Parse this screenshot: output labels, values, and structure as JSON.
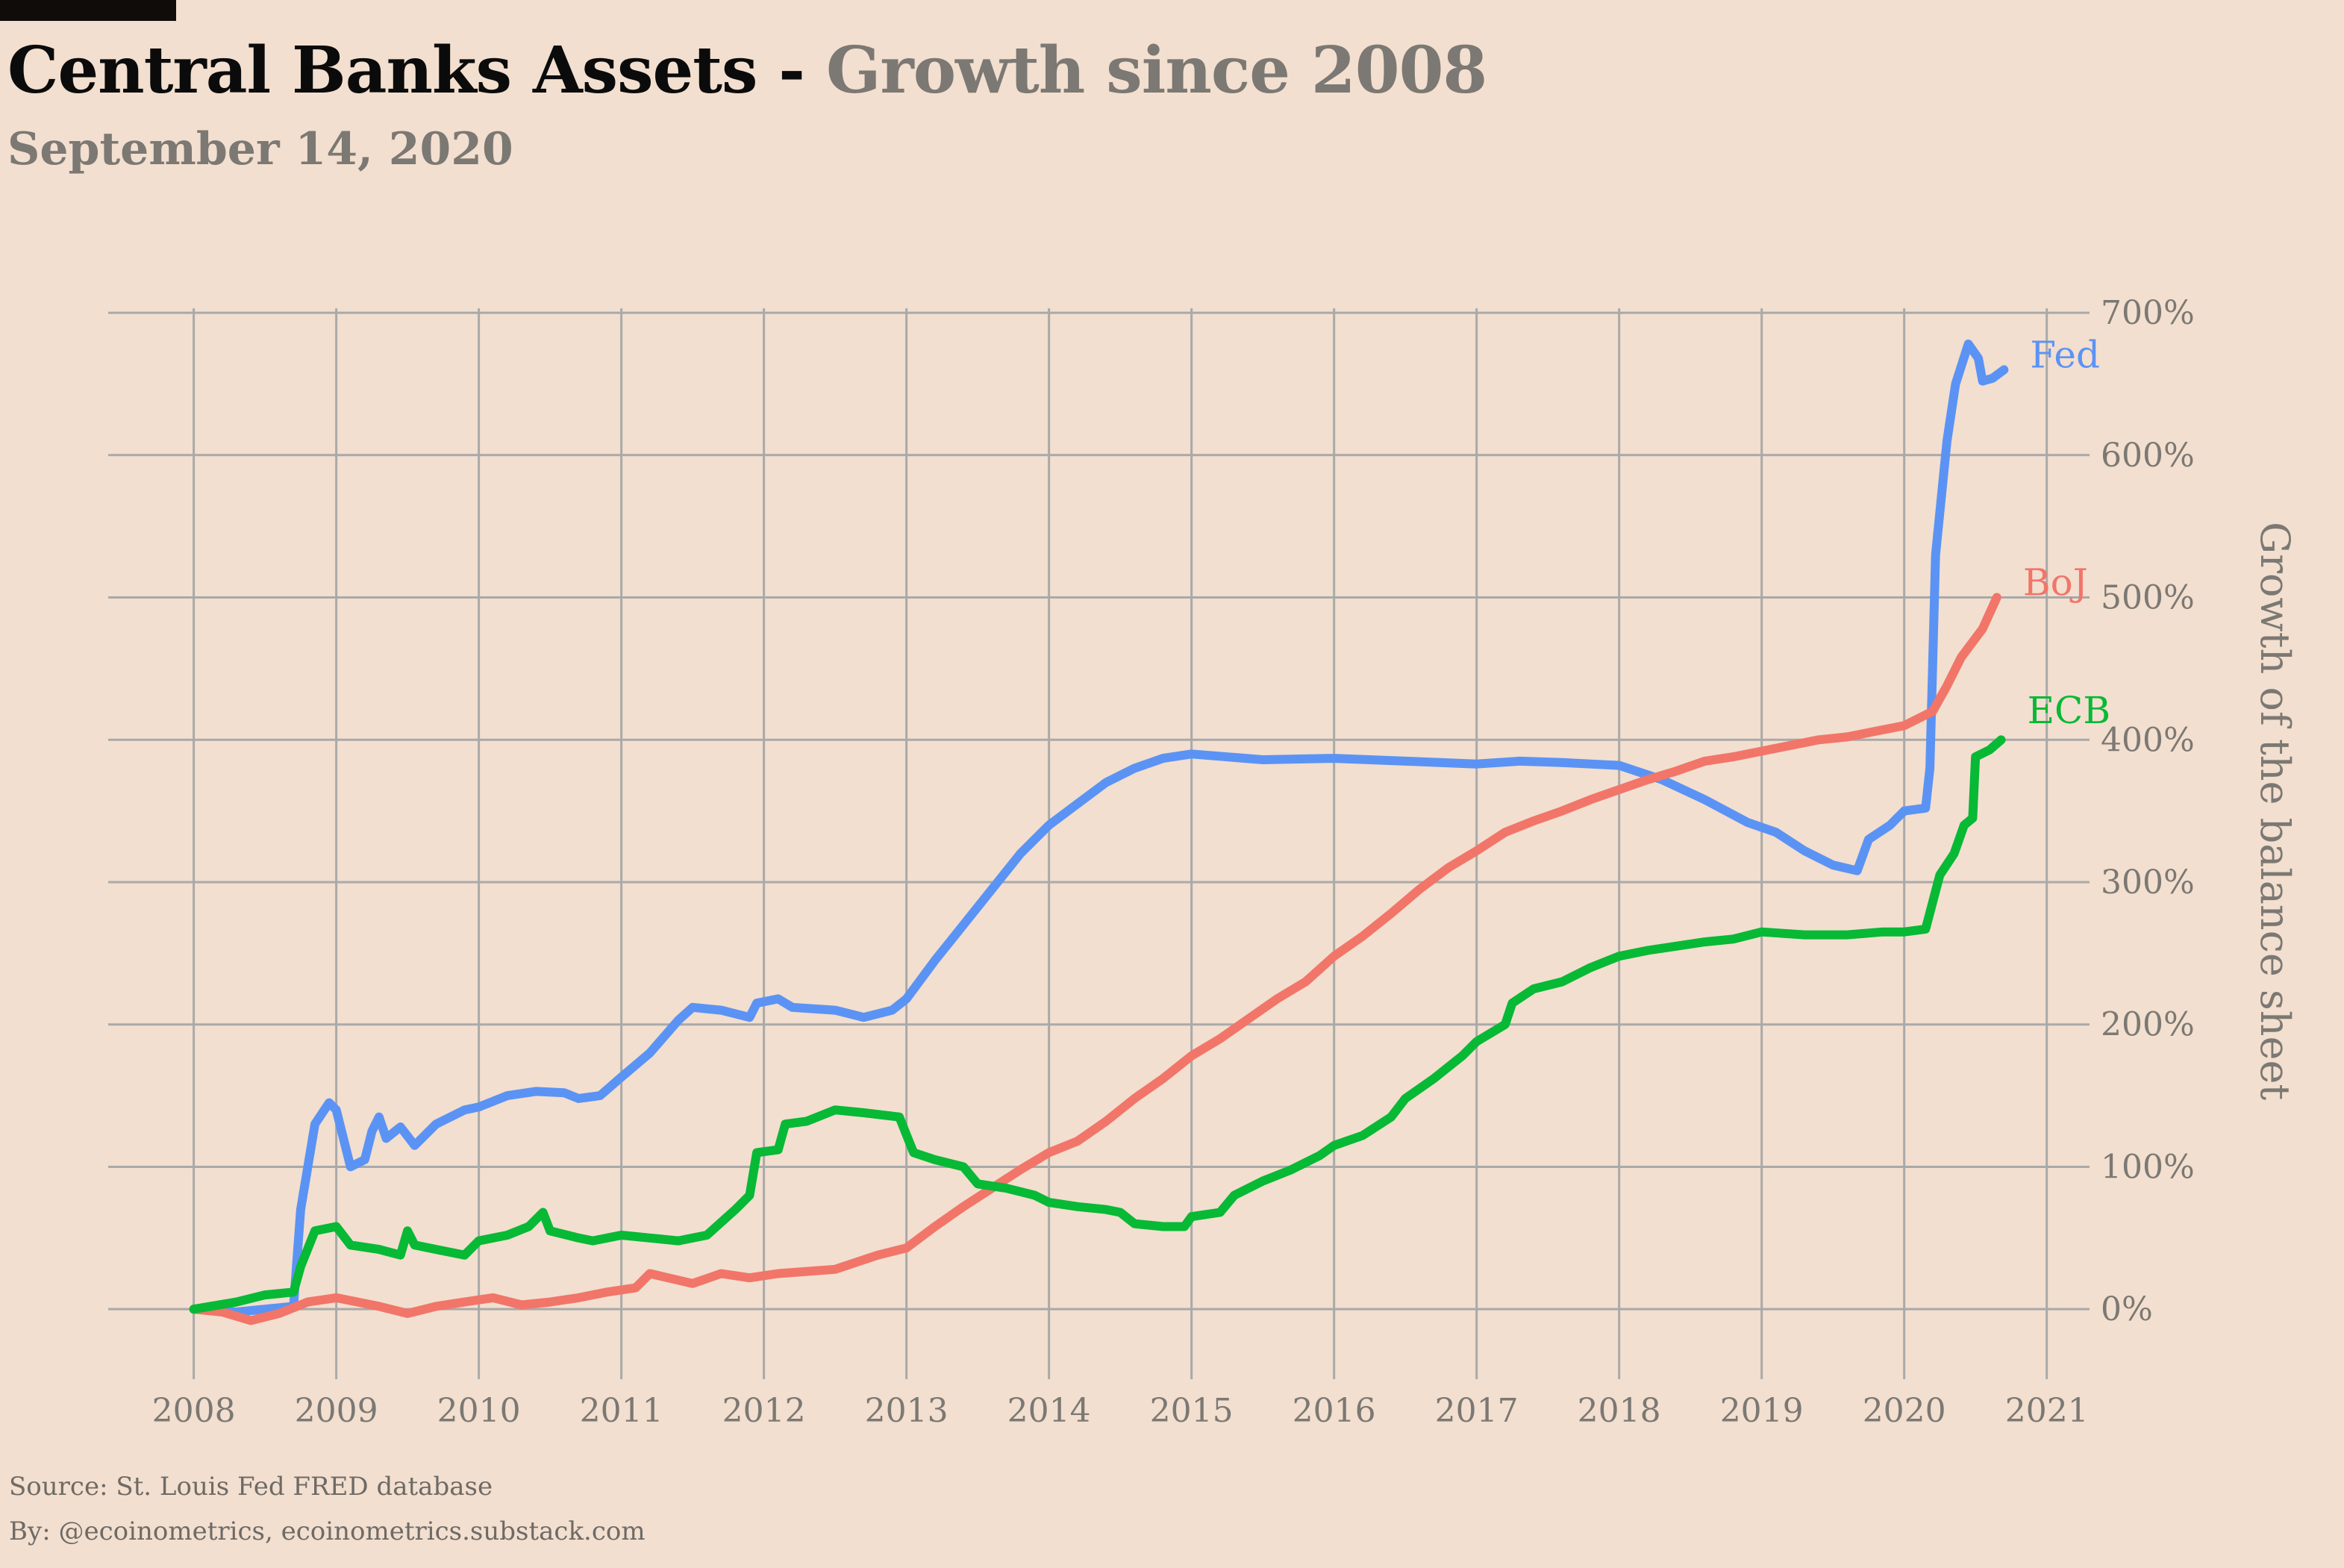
{
  "header": {
    "title": "Central Banks Assets",
    "separator": " - ",
    "title_suffix": "Growth since 2008",
    "subtitle": "September 14, 2020"
  },
  "footer": {
    "source": "Source: St. Louis Fed FRED database",
    "by": "By: @ecoinometrics, ecoinometrics.substack.com"
  },
  "colors": {
    "background": "#f2dfcf",
    "grid": "#a9a9a9",
    "tick_text": "#7c7873",
    "Fed": "#5b93f5",
    "BoJ": "#f27569",
    "ECB": "#07b935"
  },
  "chart_data": {
    "type": "line",
    "title": "Central Banks Assets - Growth since 2008",
    "subtitle": "September 14, 2020",
    "xlabel": "",
    "ylabel": "Growth of the balance sheet",
    "y_axis_side": "right",
    "xlim": [
      2007.4,
      2021.3
    ],
    "ylim": [
      -45,
      710
    ],
    "x_ticks": [
      2008,
      2009,
      2010,
      2011,
      2012,
      2013,
      2014,
      2015,
      2016,
      2017,
      2018,
      2019,
      2020,
      2021
    ],
    "x_tick_labels": [
      "2008",
      "2009",
      "2010",
      "2011",
      "2012",
      "2013",
      "2014",
      "2015",
      "2016",
      "2017",
      "2018",
      "2019",
      "2020",
      "2021"
    ],
    "y_ticks": [
      0,
      100,
      200,
      300,
      400,
      500,
      600,
      700
    ],
    "y_tick_labels": [
      "0%",
      "100%",
      "200%",
      "300%",
      "400%",
      "500%",
      "600%",
      "700%"
    ],
    "grid": true,
    "legend": "direct labels at line ends",
    "series": [
      {
        "name": "Fed",
        "label_value": 670,
        "points": [
          [
            2008.0,
            0
          ],
          [
            2008.3,
            -2
          ],
          [
            2008.7,
            2
          ],
          [
            2008.75,
            70
          ],
          [
            2008.85,
            130
          ],
          [
            2008.95,
            145
          ],
          [
            2009.0,
            140
          ],
          [
            2009.1,
            100
          ],
          [
            2009.2,
            105
          ],
          [
            2009.25,
            125
          ],
          [
            2009.3,
            135
          ],
          [
            2009.35,
            120
          ],
          [
            2009.45,
            128
          ],
          [
            2009.55,
            115
          ],
          [
            2009.7,
            130
          ],
          [
            2009.9,
            140
          ],
          [
            2010.0,
            142
          ],
          [
            2010.2,
            150
          ],
          [
            2010.4,
            153
          ],
          [
            2010.6,
            152
          ],
          [
            2010.7,
            148
          ],
          [
            2010.85,
            150
          ],
          [
            2011.0,
            163
          ],
          [
            2011.2,
            180
          ],
          [
            2011.4,
            203
          ],
          [
            2011.5,
            212
          ],
          [
            2011.7,
            210
          ],
          [
            2011.9,
            205
          ],
          [
            2011.95,
            215
          ],
          [
            2012.1,
            218
          ],
          [
            2012.2,
            212
          ],
          [
            2012.5,
            210
          ],
          [
            2012.7,
            205
          ],
          [
            2012.9,
            210
          ],
          [
            2013.0,
            218
          ],
          [
            2013.2,
            245
          ],
          [
            2013.4,
            270
          ],
          [
            2013.6,
            295
          ],
          [
            2013.8,
            320
          ],
          [
            2014.0,
            340
          ],
          [
            2014.2,
            355
          ],
          [
            2014.4,
            370
          ],
          [
            2014.6,
            380
          ],
          [
            2014.8,
            387
          ],
          [
            2015.0,
            390
          ],
          [
            2015.5,
            386
          ],
          [
            2016.0,
            387
          ],
          [
            2016.5,
            385
          ],
          [
            2017.0,
            383
          ],
          [
            2017.3,
            385
          ],
          [
            2017.6,
            384
          ],
          [
            2018.0,
            382
          ],
          [
            2018.3,
            372
          ],
          [
            2018.6,
            358
          ],
          [
            2018.9,
            342
          ],
          [
            2019.1,
            335
          ],
          [
            2019.3,
            322
          ],
          [
            2019.5,
            312
          ],
          [
            2019.67,
            308
          ],
          [
            2019.75,
            330
          ],
          [
            2019.9,
            340
          ],
          [
            2020.0,
            350
          ],
          [
            2020.15,
            352
          ],
          [
            2020.18,
            380
          ],
          [
            2020.22,
            530
          ],
          [
            2020.3,
            610
          ],
          [
            2020.36,
            650
          ],
          [
            2020.45,
            678
          ],
          [
            2020.52,
            668
          ],
          [
            2020.55,
            652
          ],
          [
            2020.62,
            654
          ],
          [
            2020.7,
            660
          ]
        ]
      },
      {
        "name": "BoJ",
        "label_value": 510,
        "points": [
          [
            2008.0,
            0
          ],
          [
            2008.2,
            -2
          ],
          [
            2008.4,
            -8
          ],
          [
            2008.6,
            -3
          ],
          [
            2008.8,
            5
          ],
          [
            2009.0,
            8
          ],
          [
            2009.3,
            2
          ],
          [
            2009.5,
            -3
          ],
          [
            2009.7,
            2
          ],
          [
            2009.9,
            5
          ],
          [
            2010.1,
            8
          ],
          [
            2010.3,
            3
          ],
          [
            2010.5,
            5
          ],
          [
            2010.7,
            8
          ],
          [
            2010.9,
            12
          ],
          [
            2011.1,
            15
          ],
          [
            2011.2,
            25
          ],
          [
            2011.5,
            18
          ],
          [
            2011.7,
            25
          ],
          [
            2011.9,
            22
          ],
          [
            2012.1,
            25
          ],
          [
            2012.5,
            28
          ],
          [
            2012.8,
            38
          ],
          [
            2013.0,
            43
          ],
          [
            2013.2,
            58
          ],
          [
            2013.4,
            72
          ],
          [
            2013.6,
            85
          ],
          [
            2013.8,
            98
          ],
          [
            2014.0,
            110
          ],
          [
            2014.2,
            118
          ],
          [
            2014.4,
            132
          ],
          [
            2014.6,
            148
          ],
          [
            2014.8,
            162
          ],
          [
            2015.0,
            178
          ],
          [
            2015.2,
            190
          ],
          [
            2015.4,
            204
          ],
          [
            2015.6,
            218
          ],
          [
            2015.8,
            230
          ],
          [
            2016.0,
            248
          ],
          [
            2016.2,
            262
          ],
          [
            2016.4,
            278
          ],
          [
            2016.6,
            295
          ],
          [
            2016.8,
            310
          ],
          [
            2017.0,
            322
          ],
          [
            2017.2,
            335
          ],
          [
            2017.4,
            343
          ],
          [
            2017.6,
            350
          ],
          [
            2017.8,
            358
          ],
          [
            2018.0,
            365
          ],
          [
            2018.2,
            372
          ],
          [
            2018.4,
            378
          ],
          [
            2018.6,
            385
          ],
          [
            2018.8,
            388
          ],
          [
            2019.0,
            392
          ],
          [
            2019.2,
            396
          ],
          [
            2019.4,
            400
          ],
          [
            2019.6,
            402
          ],
          [
            2019.8,
            406
          ],
          [
            2020.0,
            410
          ],
          [
            2020.2,
            420
          ],
          [
            2020.3,
            438
          ],
          [
            2020.4,
            458
          ],
          [
            2020.55,
            478
          ],
          [
            2020.65,
            500
          ]
        ]
      },
      {
        "name": "ECB",
        "label_value": 420,
        "points": [
          [
            2008.0,
            0
          ],
          [
            2008.3,
            5
          ],
          [
            2008.5,
            10
          ],
          [
            2008.7,
            12
          ],
          [
            2008.75,
            30
          ],
          [
            2008.85,
            55
          ],
          [
            2009.0,
            58
          ],
          [
            2009.1,
            45
          ],
          [
            2009.3,
            42
          ],
          [
            2009.45,
            38
          ],
          [
            2009.5,
            55
          ],
          [
            2009.55,
            45
          ],
          [
            2009.7,
            42
          ],
          [
            2009.9,
            38
          ],
          [
            2010.0,
            48
          ],
          [
            2010.2,
            52
          ],
          [
            2010.35,
            58
          ],
          [
            2010.45,
            68
          ],
          [
            2010.5,
            55
          ],
          [
            2010.7,
            50
          ],
          [
            2010.8,
            48
          ],
          [
            2011.0,
            52
          ],
          [
            2011.2,
            50
          ],
          [
            2011.4,
            48
          ],
          [
            2011.6,
            52
          ],
          [
            2011.8,
            70
          ],
          [
            2011.9,
            80
          ],
          [
            2011.95,
            110
          ],
          [
            2012.1,
            112
          ],
          [
            2012.15,
            130
          ],
          [
            2012.3,
            132
          ],
          [
            2012.5,
            140
          ],
          [
            2012.7,
            138
          ],
          [
            2012.95,
            135
          ],
          [
            2013.05,
            110
          ],
          [
            2013.2,
            105
          ],
          [
            2013.4,
            100
          ],
          [
            2013.5,
            88
          ],
          [
            2013.7,
            85
          ],
          [
            2013.9,
            80
          ],
          [
            2014.0,
            75
          ],
          [
            2014.2,
            72
          ],
          [
            2014.4,
            70
          ],
          [
            2014.5,
            68
          ],
          [
            2014.6,
            60
          ],
          [
            2014.8,
            58
          ],
          [
            2014.95,
            58
          ],
          [
            2015.0,
            65
          ],
          [
            2015.2,
            68
          ],
          [
            2015.3,
            80
          ],
          [
            2015.5,
            90
          ],
          [
            2015.7,
            98
          ],
          [
            2015.9,
            108
          ],
          [
            2016.0,
            115
          ],
          [
            2016.2,
            122
          ],
          [
            2016.4,
            135
          ],
          [
            2016.5,
            148
          ],
          [
            2016.7,
            162
          ],
          [
            2016.9,
            178
          ],
          [
            2017.0,
            188
          ],
          [
            2017.2,
            200
          ],
          [
            2017.25,
            215
          ],
          [
            2017.4,
            225
          ],
          [
            2017.6,
            230
          ],
          [
            2017.8,
            240
          ],
          [
            2018.0,
            248
          ],
          [
            2018.2,
            252
          ],
          [
            2018.4,
            255
          ],
          [
            2018.6,
            258
          ],
          [
            2018.8,
            260
          ],
          [
            2019.0,
            265
          ],
          [
            2019.3,
            263
          ],
          [
            2019.6,
            263
          ],
          [
            2019.85,
            265
          ],
          [
            2020.0,
            265
          ],
          [
            2020.15,
            267
          ],
          [
            2020.25,
            305
          ],
          [
            2020.35,
            320
          ],
          [
            2020.42,
            340
          ],
          [
            2020.48,
            345
          ],
          [
            2020.5,
            388
          ],
          [
            2020.6,
            393
          ],
          [
            2020.68,
            400
          ]
        ]
      }
    ]
  }
}
